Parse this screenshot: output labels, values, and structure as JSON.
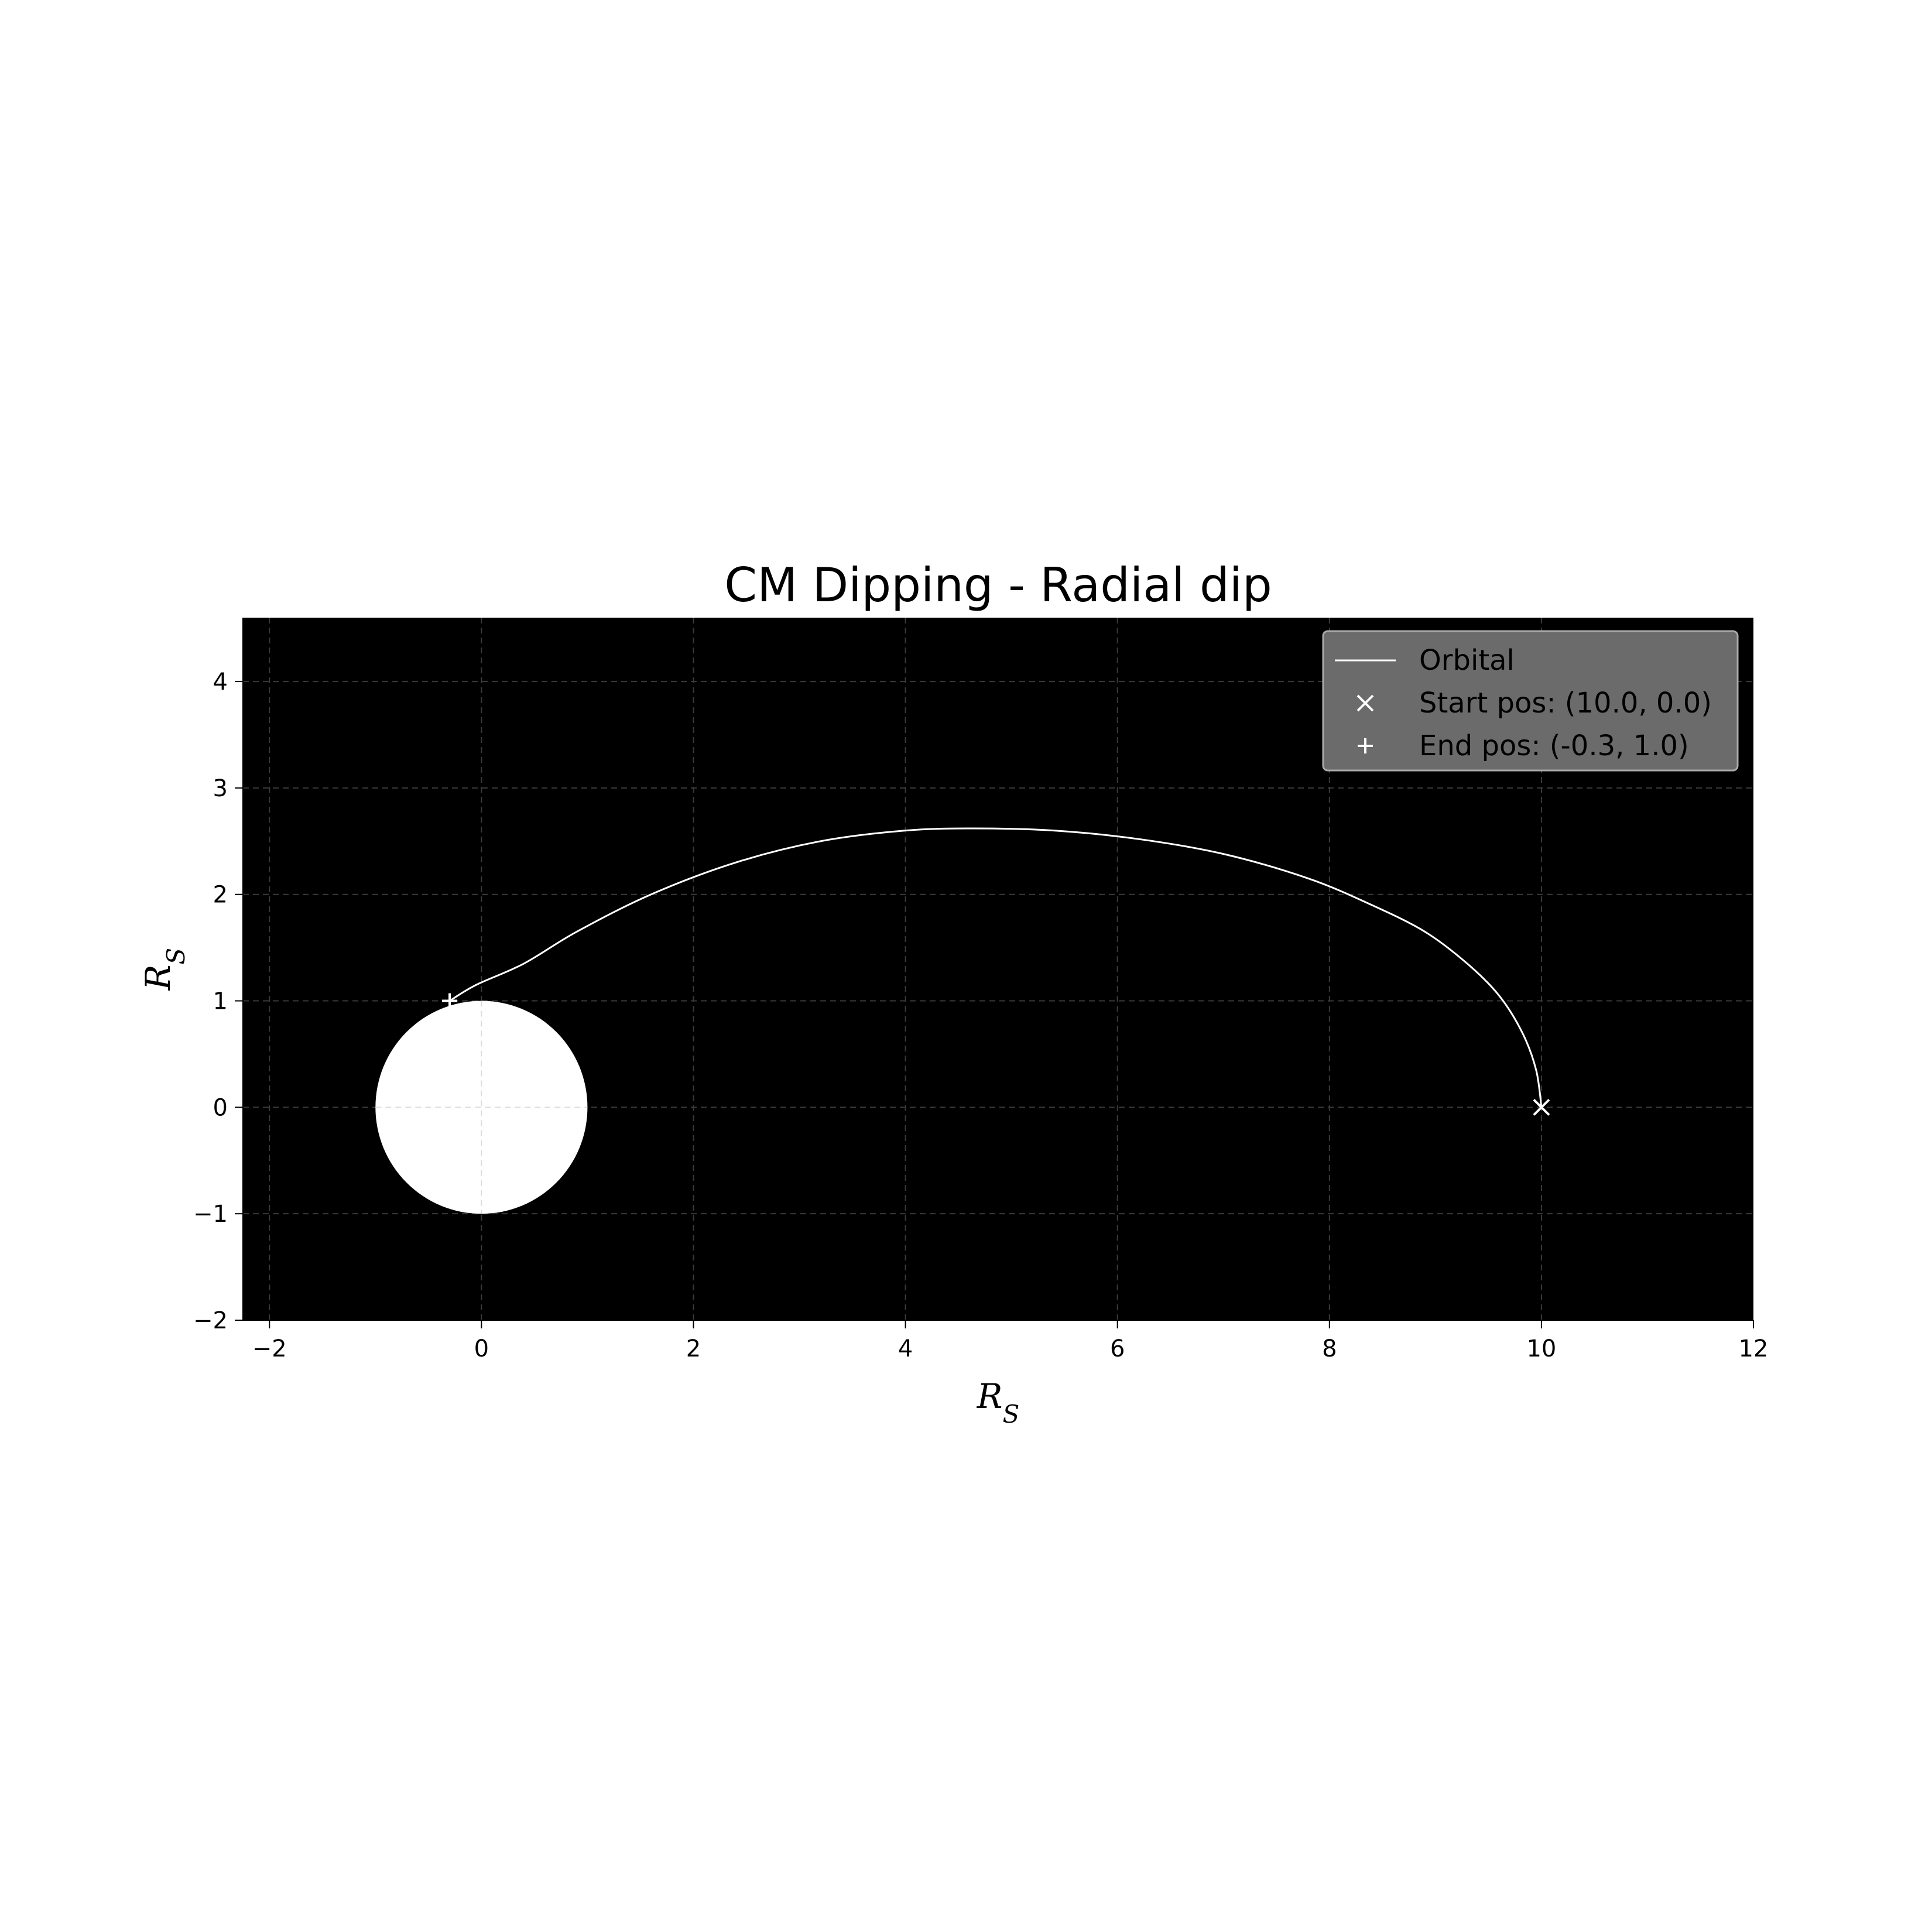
{
  "chart_data": {
    "type": "line",
    "title": "CM Dipping - Radial dip",
    "xlabel": "R_S",
    "ylabel": "R_S",
    "xlim": [
      -2.25,
      12
    ],
    "ylim": [
      -2,
      4.6
    ],
    "x_ticks": [
      -2,
      0,
      2,
      4,
      6,
      8,
      10,
      12
    ],
    "y_ticks": [
      -2,
      -1,
      0,
      1,
      2,
      3,
      4
    ],
    "x_tick_labels": [
      "−2",
      "0",
      "2",
      "4",
      "6",
      "8",
      "10",
      "12"
    ],
    "y_tick_labels": [
      "−2",
      "−1",
      "0",
      "1",
      "2",
      "3",
      "4"
    ],
    "grid": true,
    "legend_position": "upper-right",
    "background_color": "#000000",
    "foreground_color": "#ffffff",
    "body": {
      "center": [
        0,
        0
      ],
      "radius": 1.0
    },
    "series": [
      {
        "name": "Orbital",
        "kind": "line",
        "x": [
          10.0,
          9.95,
          9.82,
          9.6,
          9.3,
          8.9,
          8.4,
          7.8,
          7.0,
          6.2,
          5.4,
          4.65,
          4.0,
          3.2,
          2.4,
          1.6,
          0.9,
          0.4,
          -0.05,
          -0.3
        ],
        "y": [
          0.0,
          0.35,
          0.7,
          1.05,
          1.35,
          1.65,
          1.9,
          2.15,
          2.38,
          2.52,
          2.6,
          2.62,
          2.6,
          2.5,
          2.3,
          2.0,
          1.65,
          1.35,
          1.15,
          1.0
        ]
      },
      {
        "name": "Start pos: (10.0, 0.0)",
        "kind": "marker",
        "marker": "x",
        "x": [
          10.0
        ],
        "y": [
          0.0
        ]
      },
      {
        "name": "End pos: (-0.3, 1.0)",
        "kind": "marker",
        "marker": "+",
        "x": [
          -0.3
        ],
        "y": [
          1.0
        ]
      }
    ]
  }
}
